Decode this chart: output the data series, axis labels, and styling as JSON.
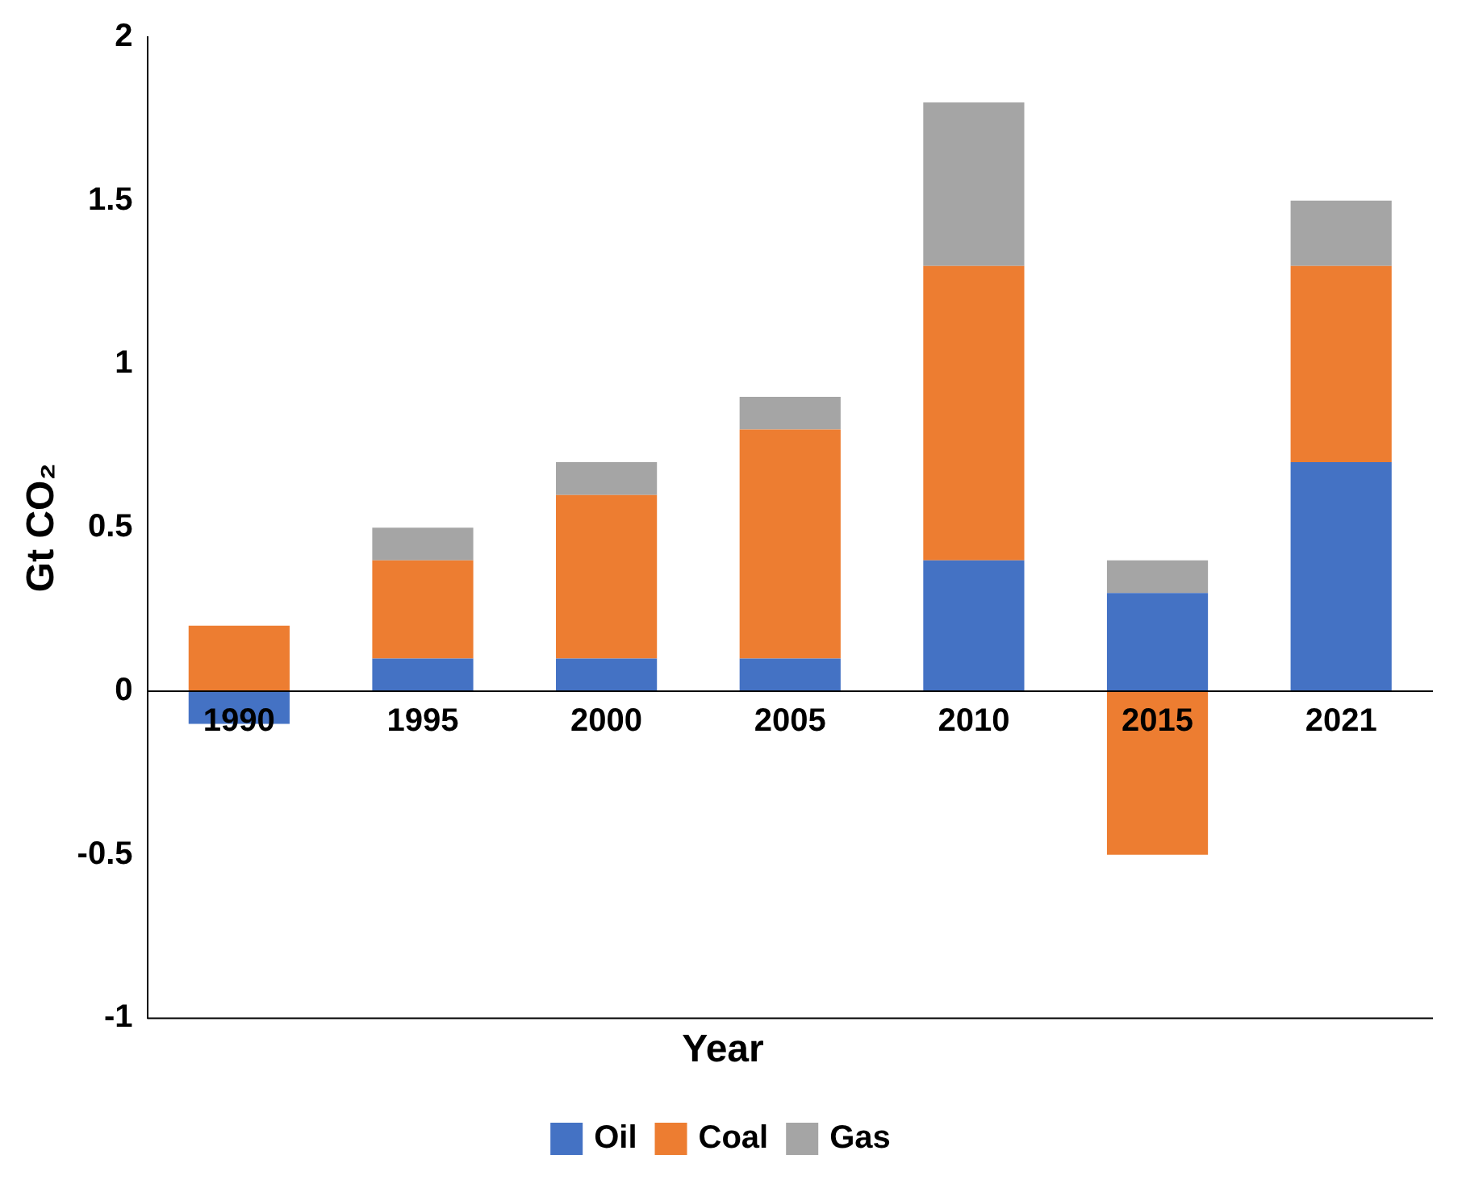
{
  "chart_data": {
    "type": "bar",
    "stacked": true,
    "xlabel": "Year",
    "ylabel": "Gt CO₂",
    "categories": [
      "1990",
      "1995",
      "2000",
      "2005",
      "2010",
      "2015",
      "2021"
    ],
    "series": [
      {
        "name": "Oil",
        "color": "#4472c4",
        "values": [
          -0.1,
          0.1,
          0.1,
          0.1,
          0.4,
          0.3,
          0.7
        ]
      },
      {
        "name": "Coal",
        "color": "#ed7d31",
        "values": [
          0.2,
          0.3,
          0.5,
          0.7,
          0.9,
          -0.5,
          0.6
        ]
      },
      {
        "name": "Gas",
        "color": "#a5a5a5",
        "values": [
          0,
          0.1,
          0.1,
          0.1,
          0.5,
          0.1,
          0.2
        ]
      }
    ],
    "ylim": [
      -1,
      2
    ],
    "yticks": [
      -1,
      -0.5,
      0,
      0.5,
      1,
      1.5,
      2
    ],
    "grid": false,
    "legend": "bottom"
  }
}
